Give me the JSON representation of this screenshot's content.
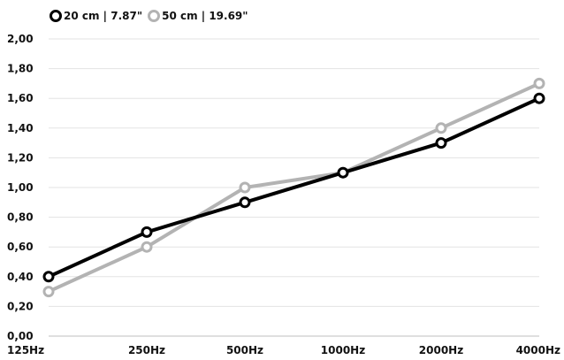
{
  "chart_data": {
    "type": "line",
    "categories": [
      "125Hz",
      "250Hz",
      "500Hz",
      "1000Hz",
      "2000Hz",
      "4000Hz"
    ],
    "series": [
      {
        "name": "20 cm | 7.87\"",
        "color": "#000000",
        "values": [
          0.4,
          0.7,
          0.9,
          1.1,
          1.3,
          1.6
        ]
      },
      {
        "name": "50 cm | 19.69\"",
        "color": "#b3b3b3",
        "values": [
          0.3,
          0.6,
          1.0,
          1.1,
          1.4,
          1.7
        ]
      }
    ],
    "y_ticks": [
      "0,00",
      "0,20",
      "0,40",
      "0,60",
      "0,80",
      "1,00",
      "1,20",
      "1,40",
      "1,60",
      "1,80",
      "2,00"
    ],
    "ylim": [
      0,
      2
    ],
    "grid": true,
    "legend_position": "top-left",
    "title": "",
    "xlabel": "",
    "ylabel": ""
  }
}
